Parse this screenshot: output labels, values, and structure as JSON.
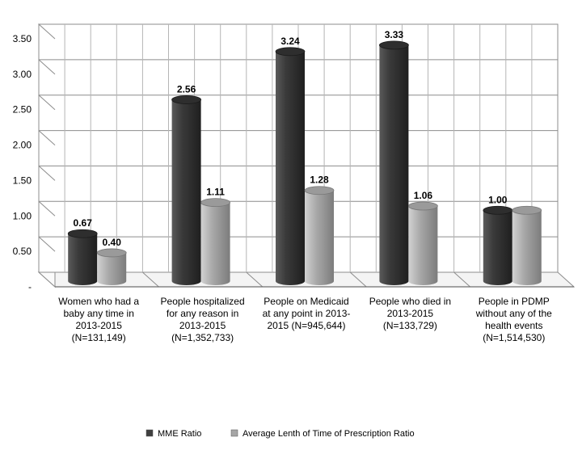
{
  "chart_data": {
    "type": "bar",
    "categories": [
      [
        "Women who had a",
        "baby any time in",
        "2013-2015",
        "(N=131,149)"
      ],
      [
        "People hospitalized",
        "for any reason in",
        "2013-2015",
        "(N=1,352,733)"
      ],
      [
        "People on Medicaid",
        "at any point in 2013-",
        "2015 (N=945,644)"
      ],
      [
        "People who died in",
        "2013-2015",
        "(N=133,729)"
      ],
      [
        "People in PDMP",
        "without any of the",
        "health events",
        "(N=1,514,530)"
      ]
    ],
    "series": [
      {
        "name": "MME Ratio",
        "values": [
          0.67,
          2.56,
          3.24,
          3.33,
          1.0
        ],
        "labels": [
          "0.67",
          "2.56",
          "3.24",
          "3.33",
          "1.00"
        ],
        "color": "#3f3f3f"
      },
      {
        "name": "Average Lenth of Time of Prescription Ratio",
        "values": [
          0.4,
          1.11,
          1.28,
          1.06,
          1.0
        ],
        "labels": [
          "0.40",
          "1.11",
          "1.28",
          "1.06",
          ""
        ],
        "color": "#a6a6a6"
      }
    ],
    "yticks": [
      "-",
      "0.50",
      "1.00",
      "1.50",
      "2.00",
      "2.50",
      "3.00",
      "3.50"
    ],
    "ylim": [
      0,
      3.5
    ],
    "grid": true,
    "legend": "bottom-center"
  }
}
